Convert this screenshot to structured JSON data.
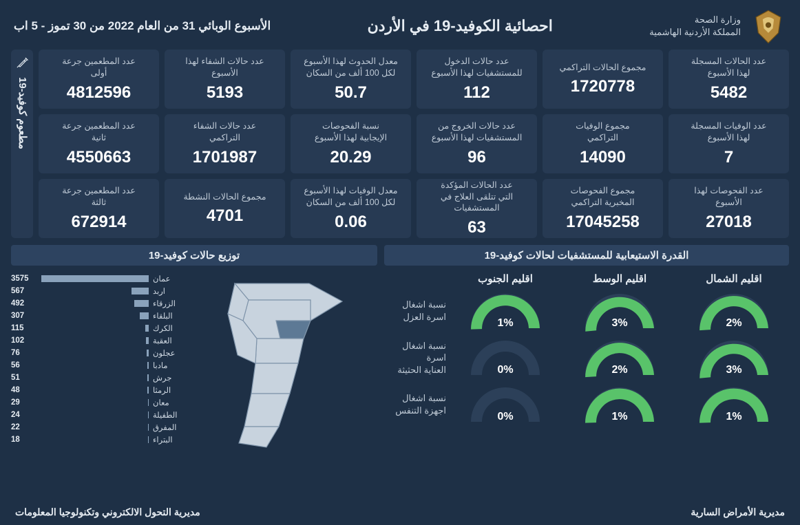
{
  "header": {
    "ministry_line1": "وزارة الصحة",
    "ministry_line2": "المملكة الأردنية الهاشمية",
    "title": "احصائية الكوفيد-19 في الأردن",
    "week": "الأسبوع الوبائي  31 من العام 2022 من  30 تموز - 5 اب"
  },
  "cards": [
    {
      "label": "عدد الحالات المسجلة\nلهذا الأسبوع",
      "value": "5482"
    },
    {
      "label": "مجموع الحالات التراكمي",
      "value": "1720778"
    },
    {
      "label": "عدد حالات الدخول\nللمستشفيات لهذا الأسبوع",
      "value": "112"
    },
    {
      "label": "معدل الحدوث لهذا الأسبوع\nلكل 100 ألف من السكان",
      "value": "50.7"
    },
    {
      "label": "عدد حالات الشفاء لهذا\nالأسبوع",
      "value": "5193"
    },
    {
      "label": "عدد المطعمين جرعة\nأولى",
      "value": "4812596"
    },
    {
      "label": "عدد الوفيات المسجلة\nلهذا الأسبوع",
      "value": "7"
    },
    {
      "label": "مجموع الوفيات\nالتراكمي",
      "value": "14090"
    },
    {
      "label": "عدد حالات الخروج من\nالمستشفيات لهذا الأسبوع",
      "value": "96"
    },
    {
      "label": "نسبة الفحوصات\nالإيجابية لهذا الأسبوع",
      "value": "20.29"
    },
    {
      "label": "عدد حالات الشفاء\nالتراكمي",
      "value": "1701987"
    },
    {
      "label": "عدد المطعمين جرعة\nثانية",
      "value": "4550663"
    },
    {
      "label": "عدد الفحوصات لهذا\nالأسبوع",
      "value": "27018"
    },
    {
      "label": "مجموع الفحوصات\nالمخبرية التراكمي",
      "value": "17045258"
    },
    {
      "label": "عدد الحالات المؤكدة\nالتي تتلقى العلاج في المستشفيات",
      "value": "63"
    },
    {
      "label": "معدل الوفيات لهذا الأسبوع\nلكل 100 ألف من السكان",
      "value": "0.06"
    },
    {
      "label": "مجموع الحالات النشطة",
      "value": "4701"
    },
    {
      "label": "عدد المطعمين جرعة\nثالثة",
      "value": "672914"
    }
  ],
  "vax_strip": "مطعوم كوفيد-19",
  "capacity": {
    "panel_title": "القدرة الاستيعابية للمستشفيات لحالات كوفيد-19",
    "regions": [
      "اقليم الشمال",
      "اقليم الوسط",
      "اقليم الجنوب"
    ],
    "rows": [
      {
        "label": "نسبة اشغال\nاسرة العزل",
        "pcts": [
          2,
          3,
          1
        ]
      },
      {
        "label": "نسبة اشغال اسرة\nالعناية الحثيثة",
        "pcts": [
          3,
          2,
          0
        ]
      },
      {
        "label": "نسبة اشغال\nاجهزة التنفس",
        "pcts": [
          1,
          1,
          0
        ]
      }
    ],
    "gauge_bg": "#2c4059",
    "gauge_fg": "#59c36a"
  },
  "distribution": {
    "panel_title": "توزيع حالات كوفيد-19",
    "max": 3575,
    "bar_color": "#8aa2bb",
    "items": [
      {
        "gov": "عمان",
        "val": 3575
      },
      {
        "gov": "اربد",
        "val": 567
      },
      {
        "gov": "الزرقاء",
        "val": 492
      },
      {
        "gov": "البلقاء",
        "val": 307
      },
      {
        "gov": "الكرك",
        "val": 115
      },
      {
        "gov": "العقبة",
        "val": 102
      },
      {
        "gov": "عجلون",
        "val": 76
      },
      {
        "gov": "مادبا",
        "val": 56
      },
      {
        "gov": "جرش",
        "val": 51
      },
      {
        "gov": "الرمثا",
        "val": 48
      },
      {
        "gov": "معان",
        "val": 29
      },
      {
        "gov": "الطفيلة",
        "val": 24
      },
      {
        "gov": "المفرق",
        "val": 22
      },
      {
        "gov": "البتراء",
        "val": 18
      }
    ]
  },
  "footer": {
    "right": "مديرية الأمراض السارية",
    "left": "مديرية التحول الالكتروني وتكنولوجيا المعلومات"
  },
  "colors": {
    "page_bg": "#1e3046",
    "card_bg": "#273a53",
    "map_fill": "#c8d3de",
    "map_stroke": "#7f94aa",
    "map_highlight": "#5d7995"
  }
}
